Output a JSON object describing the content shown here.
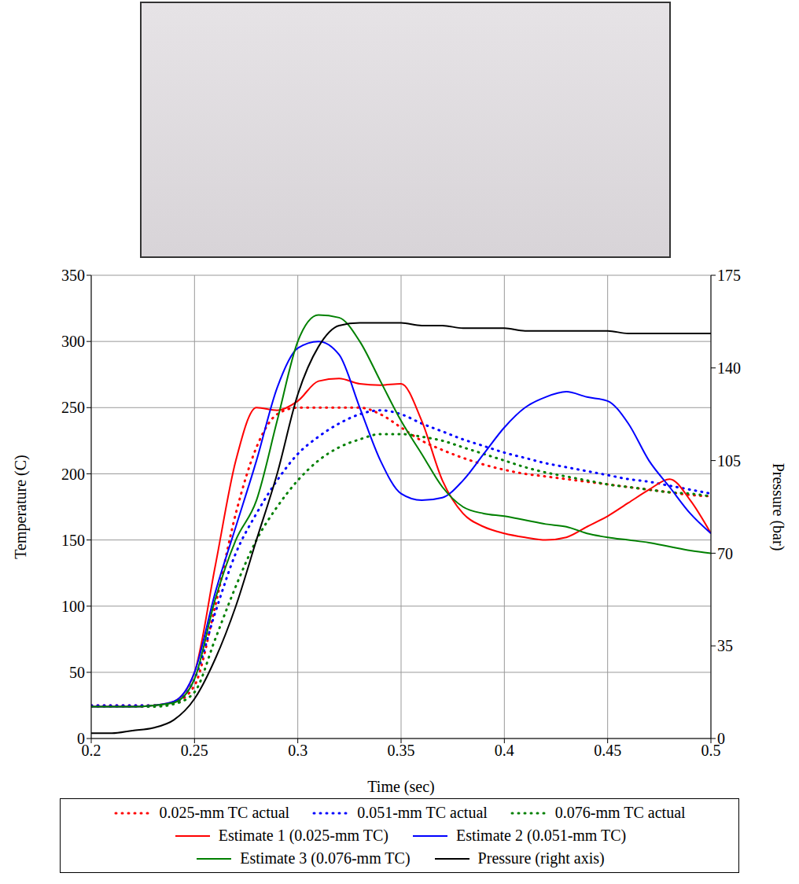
{
  "chart_data": {
    "type": "line",
    "xlabel": "Time (sec)",
    "ylabel": "Temperature (C)",
    "y2label": "Pressure (bar)",
    "x": [
      0.2,
      0.21,
      0.22,
      0.23,
      0.24,
      0.25,
      0.26,
      0.27,
      0.28,
      0.29,
      0.3,
      0.31,
      0.32,
      0.33,
      0.34,
      0.35,
      0.36,
      0.37,
      0.38,
      0.39,
      0.4,
      0.41,
      0.42,
      0.43,
      0.44,
      0.45,
      0.46,
      0.47,
      0.48,
      0.49,
      0.5
    ],
    "xlim": [
      0.2,
      0.5
    ],
    "xticks": [
      0.2,
      0.25,
      0.3,
      0.35,
      0.4,
      0.45,
      0.5
    ],
    "ylim": [
      0,
      350
    ],
    "yticks": [
      0,
      50,
      100,
      150,
      200,
      250,
      300,
      350
    ],
    "y2lim": [
      0,
      175
    ],
    "y2ticks": [
      0,
      35,
      70,
      105,
      140,
      175
    ],
    "grid": true,
    "legend": "bottom",
    "series": [
      {
        "name": "0.025-mm TC actual",
        "color": "#ff0000",
        "line_style": "dotted",
        "values": [
          25,
          25,
          25,
          25,
          27,
          40,
          100,
          170,
          220,
          245,
          250,
          250,
          250,
          250,
          245,
          235,
          225,
          218,
          212,
          207,
          203,
          200,
          198,
          196,
          194,
          192,
          190,
          188,
          186,
          184,
          183
        ]
      },
      {
        "name": "0.051-mm TC actual",
        "color": "#0000ff",
        "line_style": "dotted",
        "values": [
          25,
          25,
          25,
          25,
          27,
          45,
          95,
          140,
          170,
          195,
          215,
          228,
          238,
          245,
          248,
          245,
          238,
          232,
          226,
          221,
          216,
          212,
          208,
          205,
          202,
          199,
          196,
          194,
          191,
          188,
          185
        ]
      },
      {
        "name": "0.076-mm TC actual",
        "color": "#008000",
        "line_style": "dotted",
        "values": [
          24,
          24,
          24,
          24,
          26,
          35,
          75,
          115,
          150,
          175,
          195,
          210,
          220,
          226,
          230,
          230,
          228,
          225,
          220,
          215,
          210,
          205,
          201,
          198,
          195,
          192,
          190,
          188,
          186,
          185,
          183
        ]
      },
      {
        "name": "Estimate 1 (0.025-mm TC)",
        "color": "#ff0000",
        "line_style": "solid",
        "values": [
          24,
          24,
          24,
          25,
          28,
          50,
          130,
          210,
          250,
          248,
          255,
          270,
          272,
          268,
          267,
          268,
          240,
          195,
          170,
          160,
          155,
          152,
          150,
          152,
          160,
          168,
          178,
          188,
          196,
          180,
          155
        ]
      },
      {
        "name": "Estimate 2 (0.051-mm TC)",
        "color": "#0000ff",
        "line_style": "solid",
        "values": [
          24,
          24,
          24,
          25,
          28,
          50,
          110,
          160,
          210,
          265,
          295,
          300,
          290,
          250,
          210,
          185,
          180,
          182,
          195,
          215,
          235,
          250,
          258,
          262,
          258,
          255,
          238,
          210,
          190,
          170,
          155
        ]
      },
      {
        "name": "Estimate 3 (0.076-mm TC)",
        "color": "#008000",
        "line_style": "solid",
        "values": [
          24,
          24,
          24,
          25,
          27,
          45,
          105,
          150,
          180,
          240,
          300,
          320,
          318,
          300,
          270,
          240,
          215,
          190,
          175,
          170,
          168,
          165,
          162,
          160,
          155,
          152,
          150,
          148,
          145,
          142,
          140
        ]
      },
      {
        "name": "Pressure (right axis)",
        "color": "#000000",
        "line_style": "solid",
        "axis": "y2",
        "values": [
          2,
          2,
          3,
          4,
          7,
          15,
          30,
          50,
          75,
          100,
          130,
          148,
          156,
          157,
          157,
          157,
          156,
          156,
          155,
          155,
          155,
          154,
          154,
          154,
          154,
          154,
          153,
          153,
          153,
          153,
          153
        ]
      }
    ]
  }
}
